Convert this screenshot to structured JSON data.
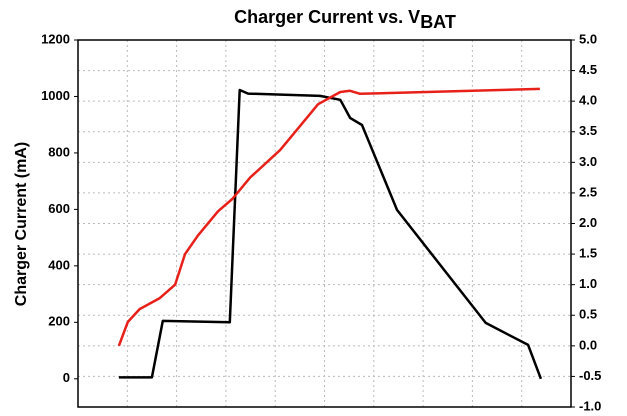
{
  "chart_data": {
    "type": "line",
    "title": "Charger Current vs. V",
    "title_subscript": "BAT",
    "ylabel": "Charger Current (mA)",
    "xlim": [
      0,
      10
    ],
    "xticks": [
      0,
      1,
      2,
      3,
      4,
      5,
      6,
      7,
      8,
      9,
      10
    ],
    "ylim": [
      -100,
      1200
    ],
    "yticks": [
      0,
      200,
      400,
      600,
      800,
      1000,
      1200
    ],
    "y2lim": [
      -1,
      5
    ],
    "y2ticks": [
      {
        "value": -1,
        "label": "-1.0"
      },
      -0.5,
      {
        "value": 0,
        "label": "0.0"
      },
      0.5,
      {
        "value": 1,
        "label": "1.0"
      },
      1.5,
      {
        "value": 2,
        "label": "2.0"
      },
      2.5,
      {
        "value": 3,
        "label": "3.0"
      },
      3.5,
      {
        "value": 4,
        "label": "4.0"
      },
      4.5,
      {
        "value": 5,
        "label": "5.0"
      }
    ],
    "grid": true,
    "series": [
      {
        "color": "#000000",
        "axis": "y",
        "x": [
          0.83,
          1.5,
          1.72,
          3.08,
          3.28,
          3.45,
          4.91,
          5.32,
          5.52,
          5.76,
          6.47,
          8.27,
          9.13,
          9.39
        ],
        "values": [
          5,
          5,
          205,
          200,
          1023,
          1010,
          1002,
          988,
          924,
          899,
          598,
          198,
          120,
          0
        ]
      },
      {
        "color": "#e8201a",
        "axis": "y2",
        "x": [
          0.83,
          1.01,
          1.25,
          1.66,
          1.97,
          2.17,
          2.43,
          2.84,
          3.13,
          3.49,
          4.1,
          4.87,
          5.32,
          5.52,
          5.72,
          9.37
        ],
        "values": [
          0,
          0.39,
          0.6,
          0.78,
          1.0,
          1.5,
          1.8,
          2.2,
          2.4,
          2.75,
          3.2,
          3.95,
          4.15,
          4.17,
          4.12,
          4.2
        ]
      }
    ]
  }
}
